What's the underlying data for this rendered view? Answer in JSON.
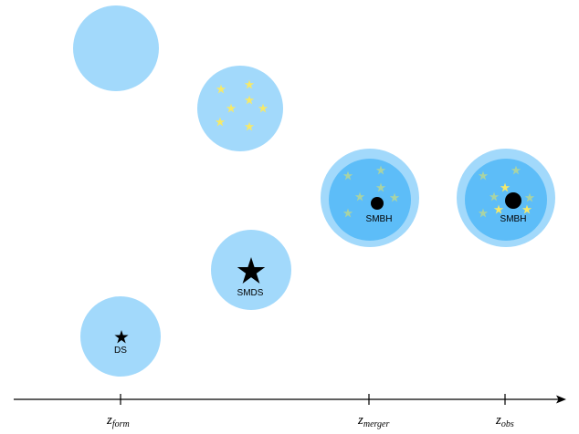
{
  "colors": {
    "halo": "#a2d9fb",
    "halo_inner": "#5dbdf8",
    "star_yellow": "#f5e96a",
    "star_faded": "#a9d3a3",
    "black": "#000000"
  },
  "labels": {
    "ds": "DS",
    "smds": "SMDS",
    "smbh_merger": "SMBH",
    "smbh_obs": "SMBH"
  },
  "axis": {
    "z_form": {
      "main": "z",
      "sub": "form"
    },
    "z_merger": {
      "main": "z",
      "sub": "merger"
    },
    "z_obs": {
      "main": "z",
      "sub": "obs"
    }
  },
  "icons": {
    "star": "star-icon",
    "black_hole": "black-hole-icon",
    "arrow": "arrow-head-icon"
  }
}
